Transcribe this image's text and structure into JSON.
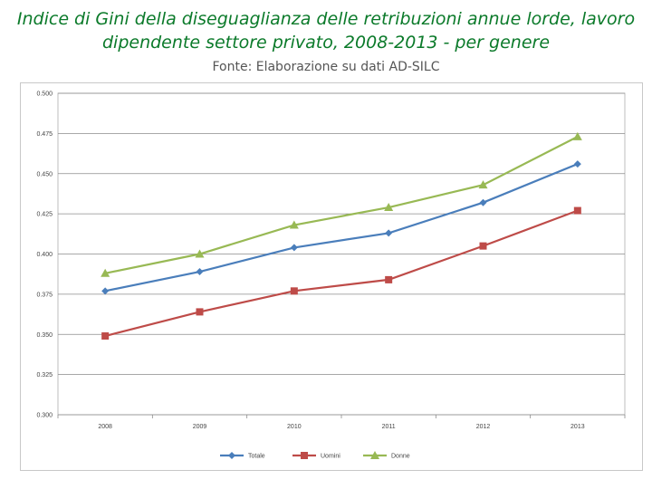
{
  "header": {
    "title_line1": "Indice di Gini della diseguaglianza delle retribuzioni annue lorde, lavoro",
    "title_line2": "dipendente settore privato, 2008-2013 -  per genere",
    "subtitle": "Fonte: Elaborazione su dati AD-SILC"
  },
  "chart_data": {
    "type": "line",
    "title": "",
    "xlabel": "",
    "ylabel": "",
    "categories": [
      "2008",
      "2009",
      "2010",
      "2011",
      "2012",
      "2013"
    ],
    "ylim": [
      0.3,
      0.5
    ],
    "yticks": [
      "0.500",
      "0.475",
      "0.450",
      "0.425",
      "0.400",
      "0.375",
      "0.350",
      "0.325",
      "0.300"
    ],
    "grid": true,
    "legend_position": "bottom",
    "series": [
      {
        "name": "Totale",
        "color": "#4a7ebb",
        "marker": "diamond",
        "values": [
          0.377,
          0.389,
          0.404,
          0.413,
          0.432,
          0.456
        ]
      },
      {
        "name": "Uomini",
        "color": "#be4b48",
        "marker": "square",
        "values": [
          0.349,
          0.364,
          0.377,
          0.384,
          0.405,
          0.427
        ]
      },
      {
        "name": "Donne",
        "color": "#98b954",
        "marker": "triangle",
        "values": [
          0.388,
          0.4,
          0.418,
          0.429,
          0.443,
          0.473
        ]
      }
    ]
  }
}
